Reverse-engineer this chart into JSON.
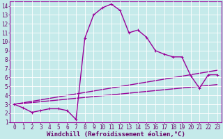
{
  "xlabel": "Windchill (Refroidissement éolien,°C)",
  "background_color": "#c5eaea",
  "line_color": "#990099",
  "grid_color": "#aadddd",
  "xlim": [
    -0.5,
    23.5
  ],
  "ylim": [
    1,
    14.5
  ],
  "xticks": [
    0,
    1,
    2,
    3,
    4,
    5,
    6,
    7,
    8,
    9,
    10,
    11,
    12,
    13,
    14,
    15,
    16,
    17,
    18,
    19,
    20,
    21,
    22,
    23
  ],
  "yticks": [
    1,
    2,
    3,
    4,
    5,
    6,
    7,
    8,
    9,
    10,
    11,
    12,
    13,
    14
  ],
  "line1_x": [
    0,
    1,
    2,
    3,
    4,
    5,
    6,
    7,
    8,
    9,
    10,
    11,
    12,
    13,
    14,
    15,
    16,
    17,
    18,
    19,
    20,
    21,
    22,
    23
  ],
  "line1_y": [
    3.0,
    2.6,
    2.1,
    2.3,
    2.5,
    2.5,
    2.3,
    1.3,
    10.4,
    13.0,
    13.8,
    14.2,
    13.5,
    11.0,
    11.3,
    10.5,
    9.0,
    8.6,
    8.3,
    8.3,
    6.2,
    4.8,
    6.3,
    6.3
  ],
  "line2_x": [
    0,
    23
  ],
  "line2_y": [
    3.0,
    5.2
  ],
  "line3_x": [
    0,
    23
  ],
  "line3_y": [
    3.0,
    6.8
  ],
  "marker_size": 2.5,
  "line_width": 1.0,
  "font_color": "#660066",
  "tick_fontsize": 5.5,
  "xlabel_fontsize": 6.5
}
